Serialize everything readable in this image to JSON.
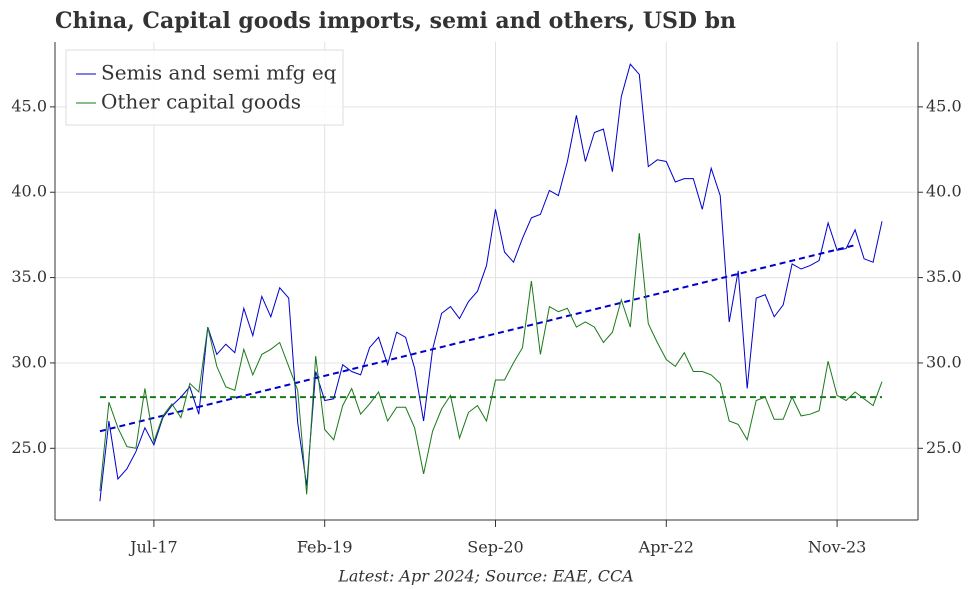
{
  "chart_data": {
    "type": "line",
    "title": "China, Capital goods imports, semi and others, USD bn",
    "source": "Latest: Apr 2024; Source: EAE, CCA",
    "x_start": "2017-01",
    "xlim": [
      "2016-08",
      "2024-08"
    ],
    "xticks": [
      {
        "value": "2017-07",
        "label": "Jul-17"
      },
      {
        "value": "2019-02",
        "label": "Feb-19"
      },
      {
        "value": "2020-09",
        "label": "Sep-20"
      },
      {
        "value": "2022-04",
        "label": "Apr-22"
      },
      {
        "value": "2023-11",
        "label": "Nov-23"
      }
    ],
    "ylim": [
      20.8,
      48.8
    ],
    "yticks": [
      {
        "value": 25,
        "label": "25.0"
      },
      {
        "value": 30,
        "label": "30.0"
      },
      {
        "value": 35,
        "label": "35.0"
      },
      {
        "value": 40,
        "label": "40.0"
      },
      {
        "value": 45,
        "label": "45.0"
      }
    ],
    "grid": true,
    "legend": "upper left",
    "series": [
      {
        "name": "Semis and semi mfg eq",
        "color": "#0000cc",
        "values": [
          21.9,
          26.6,
          23.2,
          23.8,
          24.8,
          26.2,
          25.2,
          26.8,
          27.5,
          28.0,
          28.6,
          27.0,
          32.1,
          30.5,
          31.1,
          30.6,
          33.2,
          31.6,
          33.9,
          32.7,
          34.4,
          33.8,
          26.5,
          22.8,
          29.5,
          27.8,
          27.9,
          29.9,
          29.5,
          29.3,
          30.9,
          31.5,
          29.9,
          31.8,
          31.5,
          29.7,
          26.6,
          30.8,
          32.9,
          33.3,
          32.6,
          33.6,
          34.2,
          35.7,
          39.0,
          36.5,
          35.9,
          37.3,
          38.5,
          38.7,
          40.1,
          39.8,
          41.8,
          44.5,
          41.8,
          43.5,
          43.7,
          41.2,
          45.6,
          47.5,
          46.9,
          41.5,
          41.9,
          41.8,
          40.6,
          40.8,
          40.8,
          39.0,
          41.4,
          39.8,
          32.4,
          35.4,
          28.5,
          33.8,
          34.0,
          32.7,
          33.4,
          35.8,
          35.5,
          35.7,
          36.0,
          38.2,
          36.6,
          36.7,
          37.8,
          36.1,
          35.9,
          38.3
        ]
      },
      {
        "name": "Other capital goods",
        "color": "#1a7a1a",
        "values": [
          22.5,
          27.7,
          26.2,
          25.1,
          25.0,
          28.5,
          25.4,
          26.9,
          27.6,
          26.8,
          28.8,
          28.3,
          32.1,
          29.8,
          28.6,
          28.4,
          30.8,
          29.3,
          30.5,
          30.8,
          31.2,
          29.8,
          28.4,
          22.3,
          30.4,
          26.1,
          25.5,
          27.5,
          28.5,
          27.0,
          27.6,
          28.3,
          26.6,
          27.4,
          27.4,
          26.2,
          23.5,
          26.0,
          27.3,
          28.1,
          25.6,
          27.1,
          27.5,
          26.6,
          29.0,
          29.0,
          30.0,
          30.9,
          34.8,
          30.5,
          33.3,
          33.0,
          33.2,
          32.1,
          32.4,
          32.1,
          31.2,
          31.8,
          33.7,
          32.1,
          37.6,
          32.3,
          31.2,
          30.2,
          29.8,
          30.6,
          29.5,
          29.5,
          29.3,
          28.8,
          26.6,
          26.4,
          25.5,
          27.8,
          28.0,
          26.7,
          26.7,
          28.0,
          26.9,
          27.0,
          27.2,
          30.1,
          28.1,
          27.8,
          28.3,
          27.9,
          27.5,
          28.9
        ]
      }
    ],
    "trendlines": [
      {
        "color": "#0000cc",
        "x": [
          "2017-01",
          "2024-01"
        ],
        "values": [
          26.0,
          36.9
        ]
      },
      {
        "color": "#1a7a1a",
        "x": [
          "2017-01",
          "2024-04"
        ],
        "values": [
          28.0,
          28.0
        ]
      }
    ]
  }
}
